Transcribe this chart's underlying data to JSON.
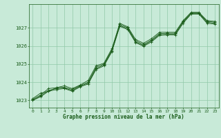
{
  "title": "Graphe pression niveau de la mer (hPa)",
  "bg_color": "#c8ead8",
  "grid_color": "#90c8a8",
  "line_color": "#1a5c1a",
  "xlim": [
    -0.5,
    23.5
  ],
  "ylim": [
    1022.6,
    1028.3
  ],
  "xticks": [
    0,
    1,
    2,
    3,
    4,
    5,
    6,
    7,
    8,
    9,
    10,
    11,
    12,
    13,
    14,
    15,
    16,
    17,
    18,
    19,
    20,
    21,
    22,
    23
  ],
  "yticks": [
    1023,
    1024,
    1025,
    1026,
    1027
  ],
  "series1": [
    [
      0,
      1023.1
    ],
    [
      1,
      1023.4
    ],
    [
      2,
      1023.5
    ],
    [
      3,
      1023.7
    ],
    [
      4,
      1023.8
    ],
    [
      5,
      1023.65
    ],
    [
      6,
      1023.85
    ],
    [
      7,
      1024.1
    ],
    [
      8,
      1024.9
    ],
    [
      9,
      1025.05
    ],
    [
      10,
      1025.85
    ],
    [
      11,
      1027.25
    ],
    [
      12,
      1027.05
    ],
    [
      13,
      1026.35
    ],
    [
      14,
      1026.15
    ],
    [
      15,
      1026.4
    ],
    [
      16,
      1026.75
    ],
    [
      17,
      1026.75
    ],
    [
      18,
      1026.75
    ],
    [
      19,
      1027.4
    ],
    [
      20,
      1027.85
    ],
    [
      21,
      1027.85
    ],
    [
      22,
      1027.4
    ],
    [
      23,
      1027.35
    ]
  ],
  "series2": [
    [
      0,
      1023.05
    ],
    [
      1,
      1023.3
    ],
    [
      2,
      1023.65
    ],
    [
      3,
      1023.7
    ],
    [
      4,
      1023.72
    ],
    [
      5,
      1023.6
    ],
    [
      6,
      1023.82
    ],
    [
      7,
      1024.0
    ],
    [
      8,
      1024.82
    ],
    [
      9,
      1025.0
    ],
    [
      10,
      1025.78
    ],
    [
      11,
      1027.18
    ],
    [
      12,
      1027.0
    ],
    [
      13,
      1026.28
    ],
    [
      14,
      1026.08
    ],
    [
      15,
      1026.32
    ],
    [
      16,
      1026.68
    ],
    [
      17,
      1026.7
    ],
    [
      18,
      1026.7
    ],
    [
      19,
      1027.35
    ],
    [
      20,
      1027.82
    ],
    [
      21,
      1027.82
    ],
    [
      22,
      1027.35
    ],
    [
      23,
      1027.3
    ]
  ],
  "series3": [
    [
      0,
      1023.0
    ],
    [
      1,
      1023.25
    ],
    [
      2,
      1023.55
    ],
    [
      3,
      1023.65
    ],
    [
      4,
      1023.68
    ],
    [
      5,
      1023.55
    ],
    [
      6,
      1023.78
    ],
    [
      7,
      1023.95
    ],
    [
      8,
      1024.75
    ],
    [
      9,
      1024.95
    ],
    [
      10,
      1025.72
    ],
    [
      11,
      1027.12
    ],
    [
      12,
      1026.95
    ],
    [
      13,
      1026.22
    ],
    [
      14,
      1026.02
    ],
    [
      15,
      1026.28
    ],
    [
      16,
      1026.62
    ],
    [
      17,
      1026.65
    ],
    [
      18,
      1026.65
    ],
    [
      19,
      1027.3
    ],
    [
      20,
      1027.78
    ],
    [
      21,
      1027.78
    ],
    [
      22,
      1027.3
    ],
    [
      23,
      1027.25
    ]
  ],
  "series4": [
    [
      0,
      1023.0
    ],
    [
      1,
      1023.2
    ],
    [
      2,
      1023.5
    ],
    [
      3,
      1023.6
    ],
    [
      4,
      1023.65
    ],
    [
      5,
      1023.5
    ],
    [
      6,
      1023.75
    ],
    [
      7,
      1023.9
    ],
    [
      8,
      1024.7
    ],
    [
      9,
      1024.9
    ],
    [
      10,
      1025.68
    ],
    [
      11,
      1027.08
    ],
    [
      12,
      1026.9
    ],
    [
      13,
      1026.18
    ],
    [
      14,
      1025.98
    ],
    [
      15,
      1026.22
    ],
    [
      16,
      1026.58
    ],
    [
      17,
      1026.6
    ],
    [
      18,
      1026.6
    ],
    [
      19,
      1027.25
    ],
    [
      20,
      1027.75
    ],
    [
      21,
      1027.75
    ],
    [
      22,
      1027.25
    ],
    [
      23,
      1027.2
    ]
  ]
}
